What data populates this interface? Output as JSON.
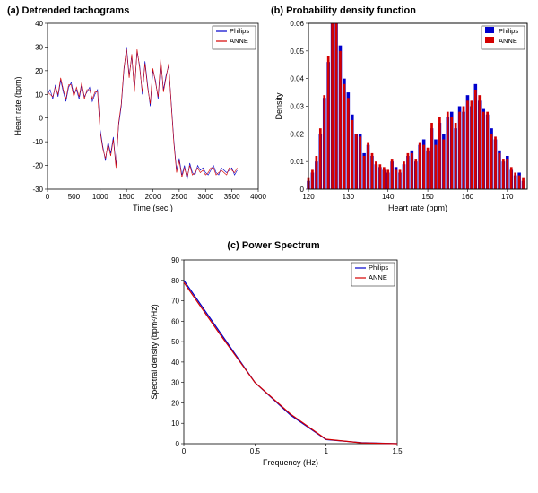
{
  "background_color": "#ffffff",
  "series_colors": {
    "Philips": "#0000cc",
    "ANNE": "#d40000"
  },
  "axis_box_color": "#000000",
  "grid_color": "#e0e0e0",
  "panel_a": {
    "type": "line",
    "title": "(a)   Detrended tachograms",
    "title_fontsize": 11,
    "xlabel": "Time (sec.)",
    "ylabel": "Heart rate (bpm)",
    "label_fontsize": 9,
    "xlim": [
      0,
      4000
    ],
    "ylim": [
      -30,
      40
    ],
    "xtick_step": 500,
    "ytick_step": 10,
    "line_width": 0.6,
    "legend_items": [
      "Philips",
      "ANNE"
    ],
    "legend_position": "top-right",
    "philips_color": "#0000cc",
    "anne_color": "#d40000",
    "x": [
      0,
      50,
      100,
      150,
      200,
      250,
      300,
      350,
      400,
      450,
      500,
      550,
      600,
      650,
      700,
      750,
      800,
      850,
      900,
      950,
      1000,
      1050,
      1100,
      1150,
      1200,
      1250,
      1300,
      1350,
      1400,
      1450,
      1500,
      1550,
      1600,
      1650,
      1700,
      1750,
      1800,
      1850,
      1900,
      1950,
      2000,
      2050,
      2100,
      2150,
      2200,
      2250,
      2300,
      2350,
      2400,
      2450,
      2500,
      2550,
      2600,
      2650,
      2700,
      2750,
      2800,
      2850,
      2900,
      2950,
      3000,
      3050,
      3100,
      3150,
      3200,
      3250,
      3300,
      3350,
      3400,
      3450,
      3500,
      3550,
      3600
    ],
    "philips_y": [
      10,
      12,
      8,
      14,
      9,
      16,
      11,
      7,
      13,
      15,
      10,
      12,
      8,
      14,
      9,
      11,
      13,
      7,
      10,
      12,
      -5,
      -12,
      -18,
      -10,
      -15,
      -8,
      -20,
      -3,
      5,
      20,
      30,
      18,
      26,
      12,
      28,
      22,
      10,
      24,
      14,
      5,
      20,
      16,
      8,
      24,
      12,
      18,
      22,
      6,
      -10,
      -22,
      -17,
      -24,
      -20,
      -26,
      -19,
      -23,
      -24,
      -20,
      -22,
      -21,
      -23,
      -24,
      -22,
      -20,
      -23,
      -24,
      -21,
      -22,
      -23,
      -22,
      -21,
      -24,
      -22
    ],
    "anne_y": [
      11,
      10,
      9,
      13,
      10,
      17,
      12,
      8,
      14,
      14,
      9,
      13,
      9,
      15,
      8,
      12,
      12,
      8,
      11,
      11,
      -6,
      -13,
      -17,
      -11,
      -16,
      -9,
      -21,
      -2,
      6,
      21,
      29,
      17,
      27,
      11,
      29,
      21,
      11,
      23,
      13,
      6,
      21,
      15,
      9,
      25,
      11,
      17,
      23,
      5,
      -11,
      -23,
      -18,
      -25,
      -21,
      -25,
      -20,
      -24,
      -23,
      -21,
      -23,
      -22,
      -24,
      -23,
      -21,
      -21,
      -24,
      -23,
      -22,
      -23,
      -24,
      -21,
      -22,
      -23,
      -21
    ]
  },
  "panel_b": {
    "type": "histogram",
    "title": "(b)   Probability density function",
    "title_fontsize": 11,
    "xlabel": "Heart rate (bpm)",
    "ylabel": "Density",
    "label_fontsize": 9,
    "xlim": [
      120,
      175
    ],
    "ylim": [
      0,
      0.06
    ],
    "xtick_step": 10,
    "ytick_step": 0.01,
    "bar_width": 0.8,
    "legend_items": [
      "Philips",
      "ANNE"
    ],
    "legend_position": "top-right",
    "philips_color": "#0000cc",
    "anne_color": "#d40000",
    "bins": [
      120,
      121,
      122,
      123,
      124,
      125,
      126,
      127,
      128,
      129,
      130,
      131,
      132,
      133,
      134,
      135,
      136,
      137,
      138,
      139,
      140,
      141,
      142,
      143,
      144,
      145,
      146,
      147,
      148,
      149,
      150,
      151,
      152,
      153,
      154,
      155,
      156,
      157,
      158,
      159,
      160,
      161,
      162,
      163,
      164,
      165,
      166,
      167,
      168,
      169,
      170,
      171,
      172,
      173,
      174
    ],
    "philips_density": [
      0.003,
      0.006,
      0.01,
      0.02,
      0.033,
      0.046,
      0.06,
      0.06,
      0.052,
      0.04,
      0.035,
      0.027,
      0.02,
      0.02,
      0.013,
      0.016,
      0.012,
      0.009,
      0.008,
      0.007,
      0.006,
      0.01,
      0.008,
      0.006,
      0.009,
      0.012,
      0.014,
      0.01,
      0.016,
      0.018,
      0.014,
      0.022,
      0.018,
      0.024,
      0.02,
      0.026,
      0.028,
      0.022,
      0.03,
      0.028,
      0.034,
      0.03,
      0.038,
      0.032,
      0.029,
      0.027,
      0.022,
      0.018,
      0.014,
      0.01,
      0.012,
      0.007,
      0.005,
      0.006,
      0.003
    ],
    "anne_density": [
      0.004,
      0.007,
      0.012,
      0.022,
      0.034,
      0.048,
      0.06,
      0.06,
      0.05,
      0.038,
      0.033,
      0.025,
      0.02,
      0.019,
      0.012,
      0.017,
      0.013,
      0.01,
      0.009,
      0.008,
      0.007,
      0.011,
      0.007,
      0.007,
      0.01,
      0.013,
      0.013,
      0.011,
      0.017,
      0.016,
      0.015,
      0.024,
      0.016,
      0.026,
      0.018,
      0.028,
      0.026,
      0.024,
      0.028,
      0.03,
      0.032,
      0.032,
      0.036,
      0.034,
      0.028,
      0.028,
      0.02,
      0.019,
      0.013,
      0.011,
      0.011,
      0.008,
      0.006,
      0.005,
      0.004
    ]
  },
  "panel_c": {
    "type": "line",
    "title": "(c)   Power Spectrum",
    "title_fontsize": 11,
    "xlabel": "Frequency (Hz)",
    "ylabel": "Spectral density (bpm²/Hz)",
    "label_fontsize": 9,
    "xlim": [
      0,
      1.5
    ],
    "ylim": [
      0,
      90
    ],
    "xtick_step": 0.5,
    "ytick_step": 10,
    "line_width": 1.2,
    "legend_items": [
      "Philips",
      "ANNE"
    ],
    "legend_position": "top-right",
    "philips_color": "#0000cc",
    "anne_color": "#d40000",
    "x": [
      0,
      0.25,
      0.5,
      0.75,
      1.0,
      1.25,
      1.5
    ],
    "philips_y": [
      80,
      55,
      30,
      14,
      2,
      0.5,
      0
    ],
    "anne_y": [
      79,
      54,
      30,
      14.5,
      2.2,
      0.4,
      0
    ]
  }
}
